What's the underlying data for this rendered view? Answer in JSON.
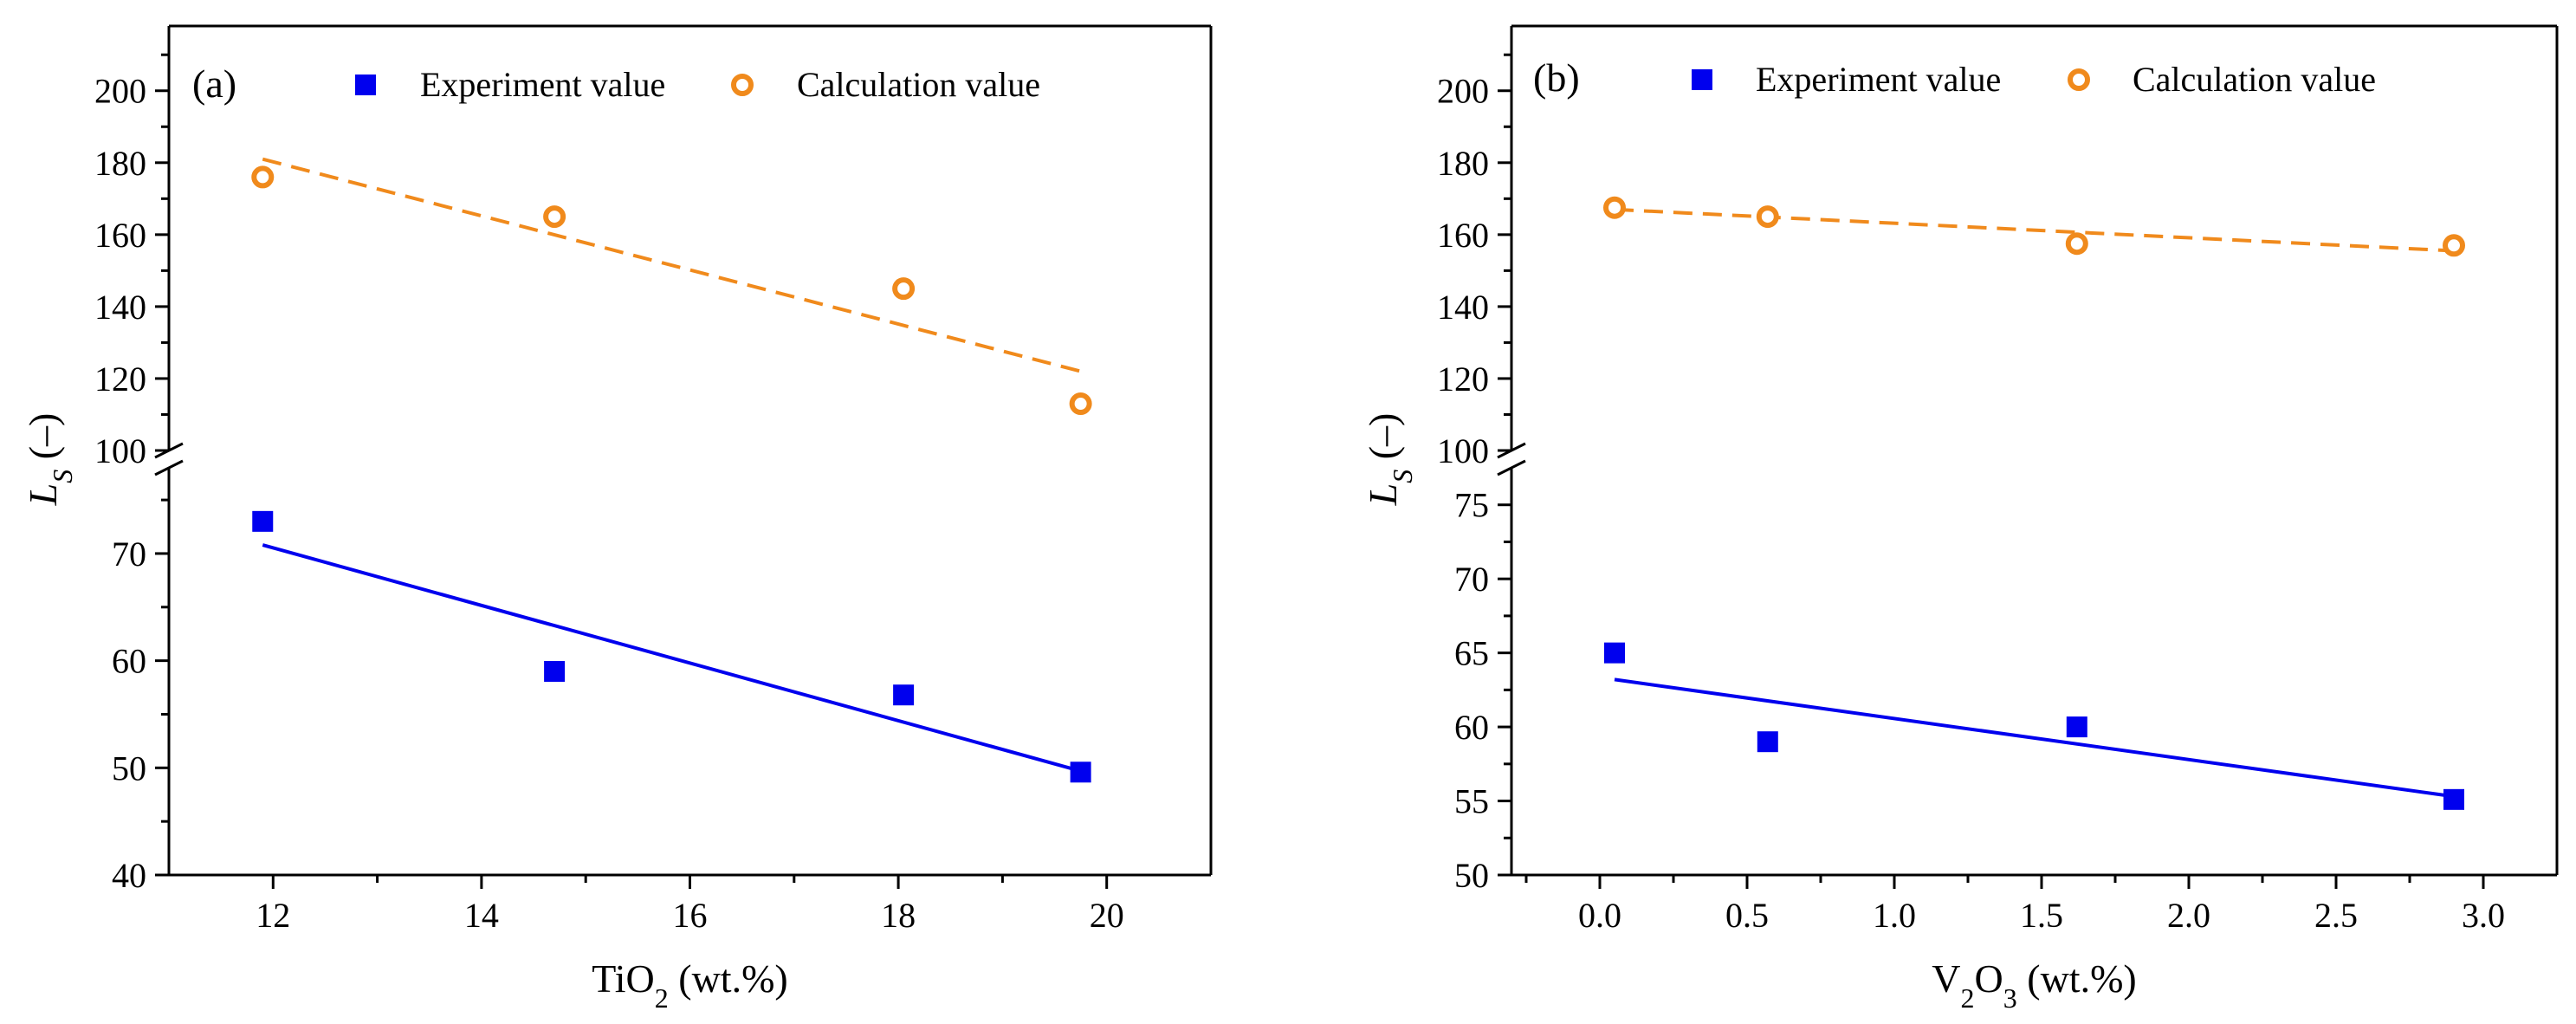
{
  "chart_data": [
    {
      "type": "scatter",
      "panel_label": "(a)",
      "xlabel": {
        "main": "TiO",
        "sub": "2",
        "rest": " (wt.%)"
      },
      "ylabel": {
        "main": "L",
        "sub": "S",
        "rest": " (–)"
      },
      "xlim": [
        11,
        21
      ],
      "xticks": [
        12,
        14,
        16,
        18,
        20
      ],
      "ylim_lower": [
        40,
        78
      ],
      "yticks_lower": [
        40,
        50,
        60,
        70
      ],
      "ylim_upper": [
        100,
        218
      ],
      "yticks_upper": [
        100,
        120,
        140,
        160,
        180,
        200
      ],
      "legend": {
        "position": "top",
        "experiment": "Experiment value",
        "calculation": "Calculation value"
      },
      "series": [
        {
          "name": "Experiment value",
          "color": "#0000ee",
          "marker": "filled-square",
          "axis": "lower",
          "x": [
            11.9,
            14.7,
            18.05,
            19.75
          ],
          "y": [
            73.0,
            59.0,
            56.8,
            49.6
          ],
          "fit": {
            "x": [
              11.9,
              19.75
            ],
            "y": [
              70.8,
              49.7
            ],
            "style": "solid"
          }
        },
        {
          "name": "Calculation value",
          "color": "#f08a1c",
          "marker": "open-circle",
          "axis": "upper",
          "x": [
            11.9,
            14.7,
            18.05,
            19.75
          ],
          "y": [
            176,
            165,
            145,
            113
          ],
          "fit": {
            "x": [
              11.9,
              19.75
            ],
            "y": [
              181,
              122
            ],
            "style": "dashed"
          }
        }
      ]
    },
    {
      "type": "scatter",
      "panel_label": "(b)",
      "xlabel": {
        "main": "V",
        "sub": "2",
        "main2": "O",
        "sub2": "3",
        "rest": " (wt.%)"
      },
      "ylabel": {
        "main": "L",
        "sub": "S",
        "rest": " (–)"
      },
      "xlim": [
        -0.3,
        3.25
      ],
      "xticks": [
        0.0,
        0.5,
        1.0,
        1.5,
        2.0,
        2.5,
        3.0
      ],
      "xtick_labels": [
        "0.0",
        "0.5",
        "1.0",
        "1.5",
        "2.0",
        "2.5",
        "3.0"
      ],
      "ylim_lower": [
        50,
        77.5
      ],
      "yticks_lower": [
        50,
        55,
        60,
        65,
        70,
        75
      ],
      "ylim_upper": [
        100,
        218
      ],
      "yticks_upper": [
        100,
        120,
        140,
        160,
        180,
        200
      ],
      "legend": {
        "position": "top",
        "experiment": "Experiment value",
        "calculation": "Calculation value"
      },
      "series": [
        {
          "name": "Experiment value",
          "color": "#0000ee",
          "marker": "filled-square",
          "axis": "lower",
          "x": [
            0.05,
            0.57,
            1.62,
            2.9
          ],
          "y": [
            65.0,
            59.0,
            60.0,
            55.1
          ],
          "fit": {
            "x": [
              0.05,
              2.9
            ],
            "y": [
              63.2,
              55.3
            ],
            "style": "solid"
          }
        },
        {
          "name": "Calculation value",
          "color": "#f08a1c",
          "marker": "open-circle",
          "axis": "upper",
          "x": [
            0.05,
            0.57,
            1.62,
            2.9
          ],
          "y": [
            167.5,
            165,
            157.5,
            157
          ],
          "fit": {
            "x": [
              0.05,
              2.9
            ],
            "y": [
              167,
              155.5
            ],
            "style": "dashed"
          }
        }
      ]
    }
  ]
}
